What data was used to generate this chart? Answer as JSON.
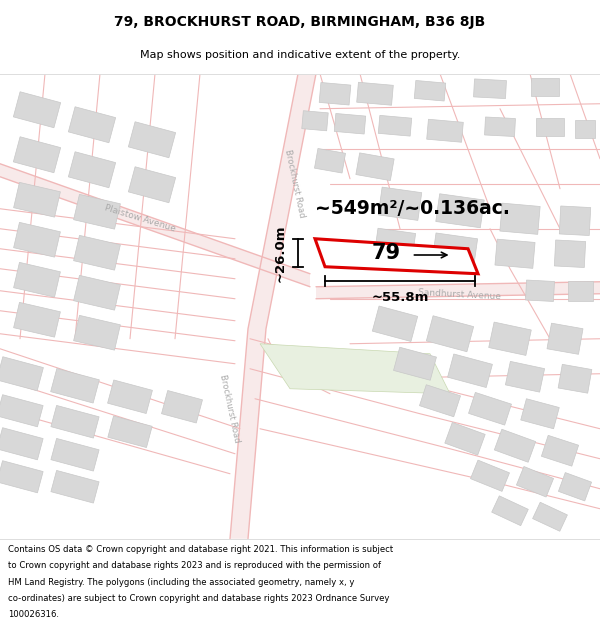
{
  "title": "79, BROCKHURST ROAD, BIRMINGHAM, B36 8JB",
  "subtitle": "Map shows position and indicative extent of the property.",
  "footer_lines": [
    "Contains OS data © Crown copyright and database right 2021. This information is subject",
    "to Crown copyright and database rights 2023 and is reproduced with the permission of",
    "HM Land Registry. The polygons (including the associated geometry, namely x, y",
    "co-ordinates) are subject to Crown copyright and database rights 2023 Ordnance Survey",
    "100026316."
  ],
  "area_text": "~549m²/~0.136ac.",
  "width_label": "~55.8m",
  "height_label": "~26.0m",
  "number_label": "79",
  "bg_color": "#ffffff",
  "map_bg": "#ffffff",
  "road_color": "#f0b8b8",
  "road_lw": 1.0,
  "building_color": "#d8d8d8",
  "building_edge": "#c8c8c8",
  "plot_color": "#dd0000",
  "plot_lw": 2.2,
  "road_text_color": "#aaaaaa",
  "label_color": "#000000",
  "green_area_color": "#e8f0e0"
}
